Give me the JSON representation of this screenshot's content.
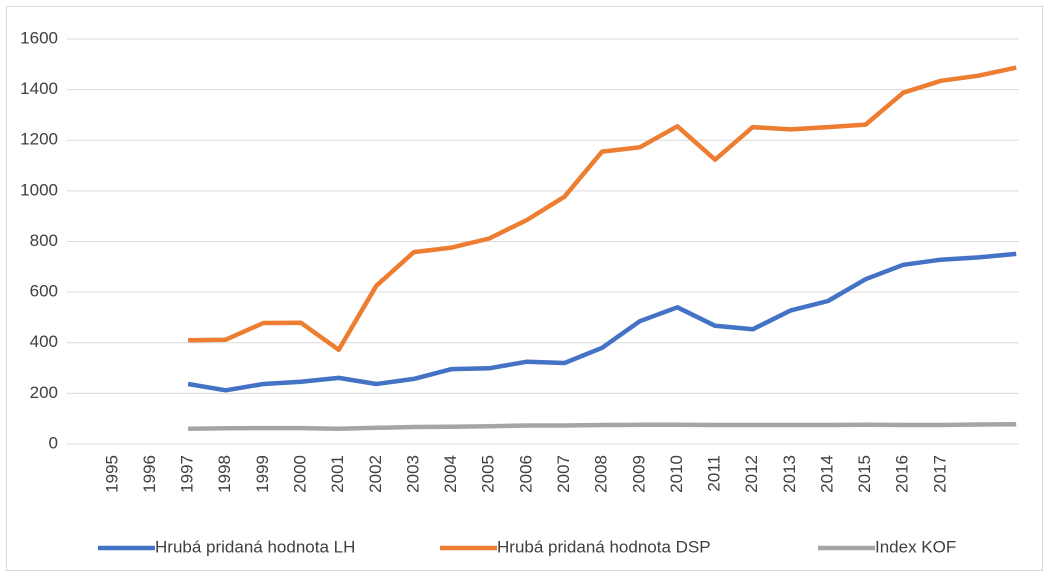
{
  "chart_data": {
    "type": "line",
    "categories": [
      "1995",
      "1996",
      "1997",
      "1998",
      "1999",
      "2000",
      "2001",
      "2002",
      "2003",
      "2004",
      "2005",
      "2006",
      "2007",
      "2008",
      "2009",
      "2010",
      "2011",
      "2012",
      "2013",
      "2014",
      "2015",
      "2016",
      "2017",
      null,
      null
    ],
    "series": [
      {
        "name": "Hrubá pridaná hodnota LH",
        "color": "#4472c4",
        "values": [
          null,
          null,
          237,
          212,
          237,
          246,
          261,
          237,
          257,
          296,
          299,
          325,
          320,
          380,
          485,
          540,
          467,
          453,
          527,
          565,
          651,
          708,
          728,
          737,
          751
        ]
      },
      {
        "name": "Hrubá pridaná hodnota DSP",
        "color": "#ed7d31",
        "values": [
          null,
          null,
          410,
          412,
          478,
          479,
          372,
          625,
          758,
          776,
          812,
          885,
          977,
          1155,
          1172,
          1255,
          1123,
          1252,
          1243,
          1252,
          1262,
          1388,
          1435,
          1455,
          1487
        ]
      },
      {
        "name": "Index KOF",
        "color": "#a5a5a5",
        "values": [
          null,
          null,
          60,
          62,
          63,
          63,
          60,
          64,
          67,
          68,
          70,
          73,
          73,
          75,
          76,
          76,
          75,
          75,
          75,
          75,
          76,
          75,
          75,
          77,
          78
        ]
      }
    ],
    "ylim": [
      0,
      1600
    ],
    "yticks": [
      0,
      200,
      400,
      600,
      800,
      1000,
      1200,
      1400,
      1600
    ],
    "grid": true,
    "legend": "bottom"
  }
}
